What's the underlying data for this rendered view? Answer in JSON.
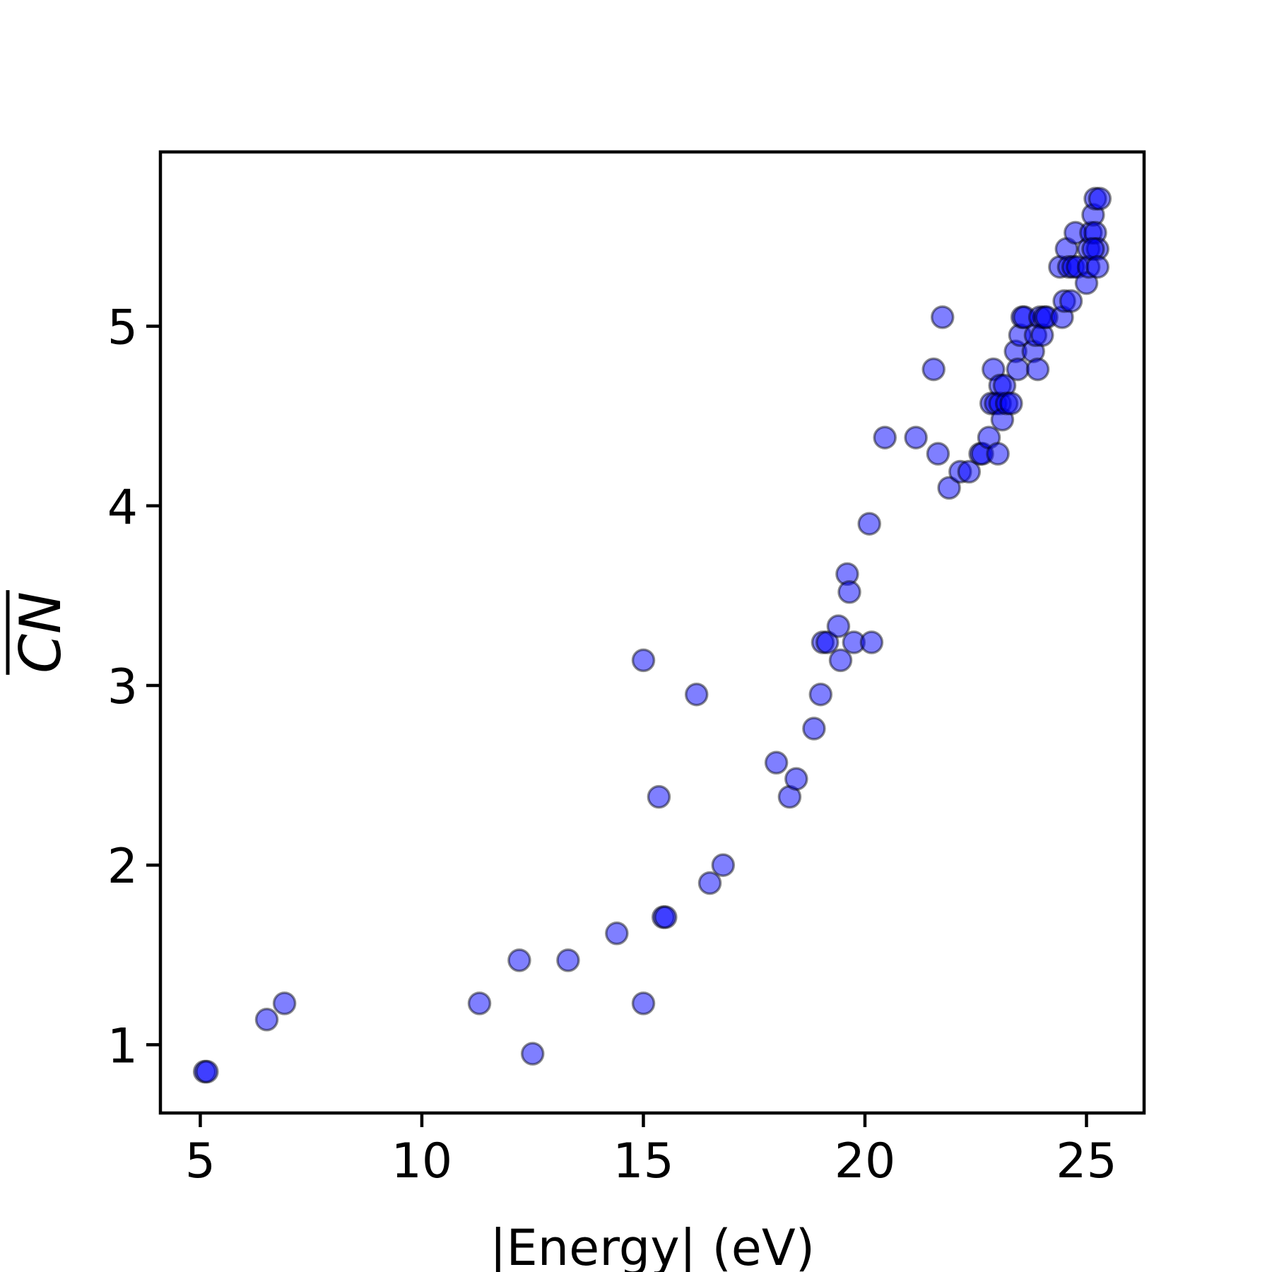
{
  "chart_data": {
    "type": "scatter",
    "xlabel": "|Energy| (eV)",
    "ylabel": "CN",
    "ylabel_overline": true,
    "xlim": [
      4.1,
      26.3
    ],
    "ylim": [
      0.62,
      5.97
    ],
    "x_ticks": [
      5,
      10,
      15,
      20,
      25
    ],
    "y_ticks": [
      1,
      2,
      3,
      4,
      5
    ],
    "grid": false,
    "marker_color": "#0000ff",
    "marker_alpha": 0.5,
    "marker_edge_color": "#000000",
    "series": [
      {
        "x": [
          5.1,
          5.15,
          6.5,
          6.9,
          11.3,
          12.2,
          12.5,
          13.3,
          14.4,
          15.0,
          15.0,
          15.35,
          15.45,
          15.5,
          16.2,
          16.5,
          16.8,
          18.0,
          18.3,
          18.45,
          18.85,
          19.0,
          19.05,
          19.15,
          19.4,
          19.45,
          19.6,
          19.65,
          19.75,
          20.1,
          20.15,
          20.45,
          21.15,
          21.55,
          21.65,
          21.75,
          21.9,
          22.15,
          22.35,
          22.6,
          22.65,
          22.8,
          22.85,
          22.9,
          22.95,
          23.0,
          23.05,
          23.05,
          23.1,
          23.15,
          23.2,
          23.3,
          23.4,
          23.45,
          23.5,
          23.55,
          23.6,
          23.8,
          23.85,
          23.9,
          23.95,
          24.0,
          24.05,
          24.1,
          24.4,
          24.45,
          24.5,
          24.55,
          24.6,
          24.65,
          24.7,
          24.75,
          24.8,
          25.0,
          25.05,
          25.1,
          25.15,
          25.2,
          25.2,
          25.25,
          25.3,
          25.05,
          25.15,
          25.25
        ],
        "y": [
          0.85,
          0.85,
          1.14,
          1.23,
          1.23,
          1.47,
          0.95,
          1.47,
          1.62,
          3.14,
          1.23,
          2.38,
          1.71,
          1.71,
          2.95,
          1.9,
          2.0,
          2.57,
          2.38,
          2.48,
          2.76,
          2.95,
          3.24,
          3.24,
          3.33,
          3.14,
          3.62,
          3.52,
          3.24,
          3.9,
          3.24,
          4.38,
          4.38,
          4.76,
          4.29,
          5.05,
          4.1,
          4.19,
          4.19,
          4.29,
          4.29,
          4.38,
          4.57,
          4.76,
          4.57,
          4.29,
          4.67,
          4.57,
          4.48,
          4.67,
          4.57,
          4.57,
          4.86,
          4.76,
          4.95,
          5.05,
          5.05,
          4.86,
          4.95,
          4.76,
          5.05,
          4.95,
          5.05,
          5.05,
          5.33,
          5.05,
          5.14,
          5.43,
          5.33,
          5.14,
          5.33,
          5.52,
          5.33,
          5.24,
          5.43,
          5.52,
          5.62,
          5.71,
          5.52,
          5.43,
          5.71,
          5.33,
          5.43,
          5.33
        ]
      }
    ]
  }
}
